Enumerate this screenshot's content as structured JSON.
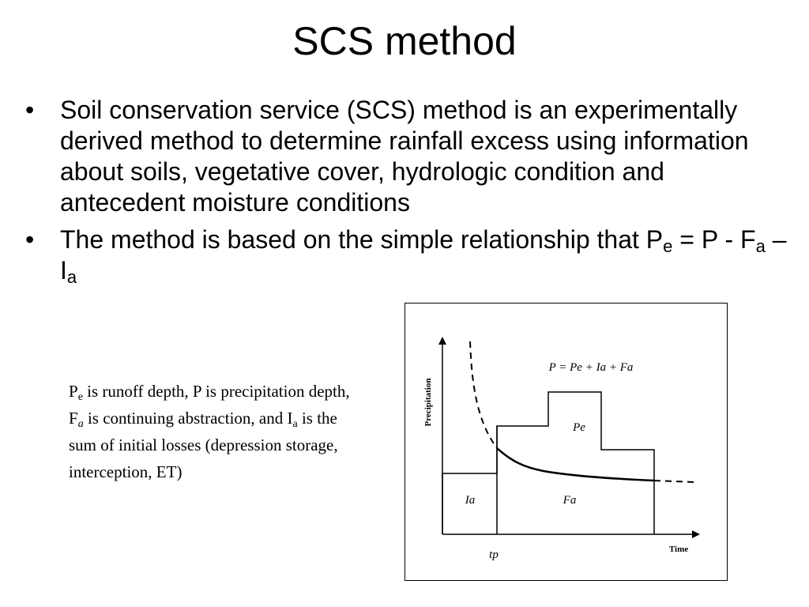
{
  "slide": {
    "title": "SCS method"
  },
  "bullets": [
    {
      "marker": "•",
      "text": "Soil conservation service (SCS) method is an experimentally derived method to determine rainfall excess using information about soils, vegetative cover, hydrologic condition and antecedent moisture conditions"
    },
    {
      "marker": "•",
      "text_start": "The method is based on the simple relationship that P",
      "sub_e": "e",
      "eq_mid": " = P - F",
      "sub_a1": "a",
      "eq_dash": " – I",
      "sub_a2": "a"
    }
  ],
  "note": {
    "p1": "P",
    "sub1": "e",
    "p2": " is runoff depth, P is precipitation depth, F",
    "sub2": "a",
    "p3": " is continuing abstraction, and I",
    "sub3": "a",
    "p4": " is the sum of initial losses (depression storage, interception, ET)"
  },
  "figure": {
    "y_axis_label": "Precipitation",
    "x_axis_label": "Time",
    "equation": "P = Pe + Ia + Fa",
    "label_pe": "Pe",
    "label_ia": "Ia",
    "label_fa": "Fa",
    "label_tp": "tp"
  }
}
